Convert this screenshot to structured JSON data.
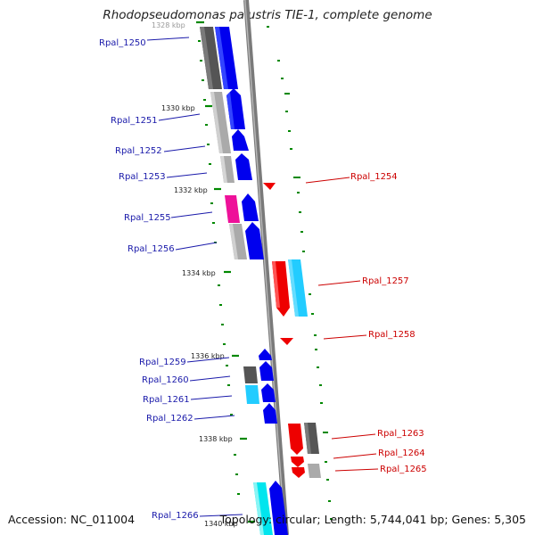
{
  "title": "Rhodopseudomonas palustris TIE-1, complete genome",
  "footer": {
    "accession": "Accession: NC_011004",
    "summary": "Topology: circular; Length: 5,744,041 bp; Genes: 5,305"
  },
  "colors": {
    "forward_cds": "#0000ee",
    "reverse_cds": "#ee0000",
    "label_forward": "#1a1aaa",
    "label_reverse": "#cc0000",
    "tick": "#008800",
    "backbone": "#888888",
    "other_genes": [
      "#555555",
      "#aaaaaa",
      "#ee1199",
      "#22ccff",
      "#00e5ee"
    ]
  },
  "ticks": [
    "1328 kbp",
    "1330 kbp",
    "1332 kbp",
    "1334 kbp",
    "1336 kbp",
    "1338 kbp",
    "1340 kbp"
  ],
  "genes_forward": [
    "Rpal_1250",
    "Rpal_1251",
    "Rpal_1252",
    "Rpal_1253",
    "Rpal_1255",
    "Rpal_1256",
    "Rpal_1259",
    "Rpal_1260",
    "Rpal_1261",
    "Rpal_1262",
    "Rpal_1266"
  ],
  "genes_reverse": [
    "Rpal_1254",
    "Rpal_1257",
    "Rpal_1258",
    "Rpal_1263",
    "Rpal_1264",
    "Rpal_1265"
  ]
}
